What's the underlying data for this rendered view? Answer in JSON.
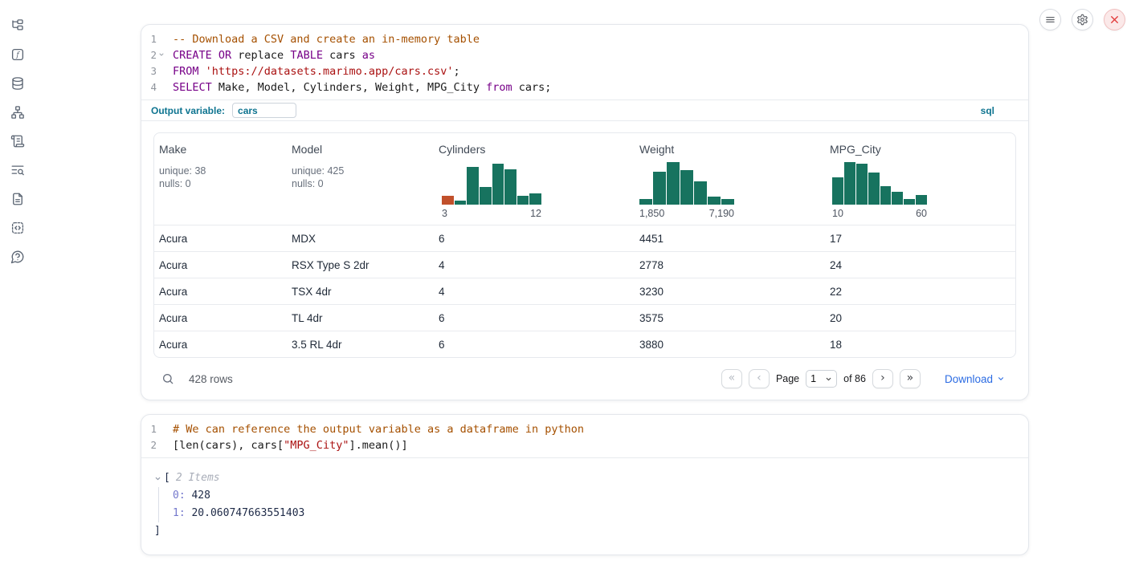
{
  "colors": {
    "accent_teal": "#0e7490",
    "link_blue": "#2c6ce3",
    "histogram_green": "#17735f",
    "histogram_orange": "#c1502b",
    "keyword_purple": "#770088",
    "string_red": "#aa1111",
    "comment_orange": "#a55000"
  },
  "sidebar": {
    "icons": [
      "file-explorer",
      "functions",
      "datasources",
      "dependency-graph",
      "scratchpad",
      "logs",
      "documentation",
      "snippets",
      "help"
    ]
  },
  "topbar": {
    "buttons": [
      {
        "icon": "menu"
      },
      {
        "icon": "settings"
      },
      {
        "icon": "shutdown",
        "danger": true
      }
    ]
  },
  "sql_cell": {
    "code_lines": [
      {
        "num": "1",
        "segments": [
          {
            "style": "cmt",
            "text": "-- Download a CSV and create an in-memory table"
          }
        ]
      },
      {
        "num": "2",
        "fold": true,
        "segments": [
          {
            "style": "kw",
            "text": "CREATE OR"
          },
          {
            "style": "pl",
            "text": " replace "
          },
          {
            "style": "kw",
            "text": "TABLE"
          },
          {
            "style": "pl",
            "text": " cars "
          },
          {
            "style": "kw",
            "text": "as"
          }
        ]
      },
      {
        "num": "3",
        "segments": [
          {
            "style": "kw",
            "text": "FROM"
          },
          {
            "style": "pl",
            "text": " "
          },
          {
            "style": "str",
            "text": "'https://datasets.marimo.app/cars.csv'"
          },
          {
            "style": "pl",
            "text": ";"
          }
        ]
      },
      {
        "num": "4",
        "segments": [
          {
            "style": "kw",
            "text": "SELECT"
          },
          {
            "style": "pl",
            "text": " Make, Model, Cylinders, Weight, MPG_City "
          },
          {
            "style": "kw",
            "text": "from"
          },
          {
            "style": "pl",
            "text": " cars;"
          }
        ]
      }
    ],
    "output_variable_label": "Output variable:",
    "output_variable_value": "cars",
    "language_badge": "sql"
  },
  "table": {
    "columns": [
      {
        "label": "Make",
        "type": "stats",
        "unique": "unique: 38",
        "nulls": "nulls: 0"
      },
      {
        "label": "Model",
        "type": "stats",
        "unique": "unique: 425",
        "nulls": "nulls: 0"
      },
      {
        "label": "Cylinders",
        "type": "histogram",
        "min_label": "3",
        "max_label": "12",
        "bars": [
          20,
          10,
          85,
          40,
          93,
          80,
          20,
          26
        ],
        "highlight_first_bar": true
      },
      {
        "label": "Weight",
        "type": "histogram",
        "min_label": "1,850",
        "max_label": "7,190",
        "bars": [
          12,
          75,
          97,
          78,
          52,
          18,
          13
        ],
        "highlight_first_bar": false
      },
      {
        "label": "MPG_City",
        "type": "histogram",
        "min_label": "10",
        "max_label": "60",
        "bars": [
          62,
          97,
          92,
          72,
          42,
          30,
          12,
          22
        ],
        "highlight_first_bar": false
      }
    ],
    "rows": [
      [
        "Acura",
        "MDX",
        "6",
        "4451",
        "17"
      ],
      [
        "Acura",
        "RSX Type S 2dr",
        "4",
        "2778",
        "24"
      ],
      [
        "Acura",
        "TSX 4dr",
        "4",
        "3230",
        "22"
      ],
      [
        "Acura",
        "TL 4dr",
        "6",
        "3575",
        "20"
      ],
      [
        "Acura",
        "3.5 RL 4dr",
        "6",
        "3880",
        "18"
      ]
    ],
    "footer": {
      "row_count": "428 rows",
      "page_label": "Page",
      "page_value": "1",
      "of_label": "of 86",
      "download_label": "Download",
      "pager_buttons": [
        "first-page",
        "prev-page",
        "next-page",
        "last-page"
      ],
      "disabled_pager_buttons": [
        "first-page",
        "prev-page"
      ]
    }
  },
  "python_cell": {
    "code_lines": [
      {
        "num": "1",
        "segments": [
          {
            "style": "cmt",
            "text": "# We can reference the output variable as a dataframe in python"
          }
        ]
      },
      {
        "num": "2",
        "segments": [
          {
            "style": "pl",
            "text": "[len(cars), cars["
          },
          {
            "style": "str",
            "text": "\"MPG_City\""
          },
          {
            "style": "pl",
            "text": "].mean()]"
          }
        ]
      }
    ]
  },
  "result_output": {
    "open_bracket": "[",
    "count_label": "2 Items",
    "items": [
      {
        "index": "0:",
        "value": "428"
      },
      {
        "index": "1:",
        "value": "20.060747663551403"
      }
    ],
    "close_bracket": "]"
  }
}
